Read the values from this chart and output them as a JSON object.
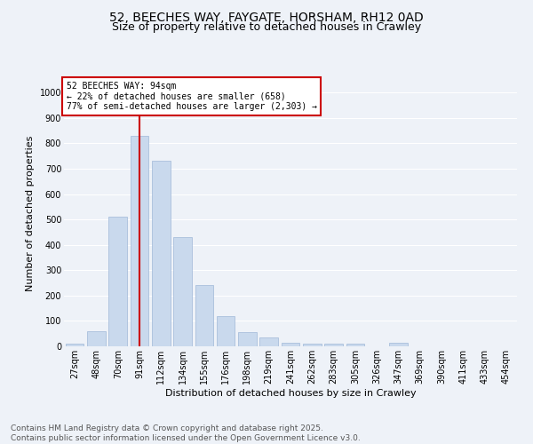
{
  "title_line1": "52, BEECHES WAY, FAYGATE, HORSHAM, RH12 0AD",
  "title_line2": "Size of property relative to detached houses in Crawley",
  "xlabel": "Distribution of detached houses by size in Crawley",
  "ylabel": "Number of detached properties",
  "categories": [
    "27sqm",
    "48sqm",
    "70sqm",
    "91sqm",
    "112sqm",
    "134sqm",
    "155sqm",
    "176sqm",
    "198sqm",
    "219sqm",
    "241sqm",
    "262sqm",
    "283sqm",
    "305sqm",
    "326sqm",
    "347sqm",
    "369sqm",
    "390sqm",
    "411sqm",
    "433sqm",
    "454sqm"
  ],
  "values": [
    10,
    60,
    510,
    830,
    730,
    430,
    240,
    120,
    55,
    35,
    15,
    10,
    10,
    10,
    0,
    15,
    0,
    0,
    0,
    0,
    0
  ],
  "bar_color": "#c9d9ed",
  "bar_edge_color": "#a0b8d8",
  "vline_color": "#cc0000",
  "vline_x": 2.98,
  "annotation_text": "52 BEECHES WAY: 94sqm\n← 22% of detached houses are smaller (658)\n77% of semi-detached houses are larger (2,303) →",
  "annotation_box_color": "#ffffff",
  "annotation_box_edge_color": "#cc0000",
  "ylim": [
    0,
    1050
  ],
  "yticks": [
    0,
    100,
    200,
    300,
    400,
    500,
    600,
    700,
    800,
    900,
    1000
  ],
  "background_color": "#eef2f8",
  "grid_color": "#ffffff",
  "footer_line1": "Contains HM Land Registry data © Crown copyright and database right 2025.",
  "footer_line2": "Contains public sector information licensed under the Open Government Licence v3.0.",
  "title_fontsize": 10,
  "subtitle_fontsize": 9,
  "annotation_fontsize": 7,
  "axis_label_fontsize": 8,
  "tick_fontsize": 7,
  "footer_fontsize": 6.5
}
